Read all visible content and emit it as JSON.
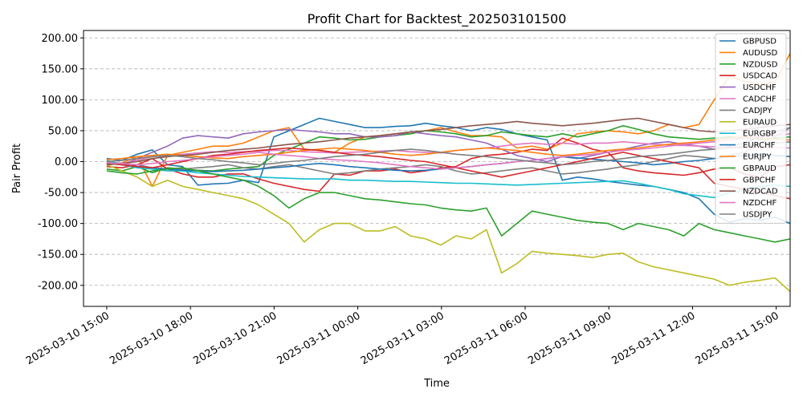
{
  "chart_data": {
    "type": "line",
    "title": "Profit Chart for Backtest_202503101500",
    "xlabel": "Time",
    "ylabel": "Pair Profit",
    "x_start": "2025-03-10 15:00",
    "x_end": "2025-03-11 15:30",
    "xlim": [
      "2025-03-10 14:10",
      "2025-03-11 15:30"
    ],
    "ylim": [
      -234,
      212
    ],
    "x_ticks": [
      "2025-03-10 15:00",
      "2025-03-10 18:00",
      "2025-03-10 21:00",
      "2025-03-11 00:00",
      "2025-03-11 03:00",
      "2025-03-11 06:00",
      "2025-03-11 09:00",
      "2025-03-11 12:00",
      "2025-03-11 15:00"
    ],
    "y_ticks": [
      "-200.00",
      "-150.00",
      "-100.00",
      "-50.00",
      "0.00",
      "50.00",
      "100.00",
      "150.00",
      "200.00"
    ],
    "y_tick_values": [
      -200,
      -150,
      -100,
      -50,
      0,
      50,
      100,
      150,
      200
    ],
    "grid": "horizontal dashed",
    "legend_position": "top-right",
    "series": [
      {
        "name": "GBPUSD",
        "color": "#1f77b4",
        "values": [
          5,
          2,
          12,
          19,
          -5,
          -8,
          -38,
          -36,
          -35,
          -30,
          -34,
          40,
          50,
          60,
          70,
          65,
          60,
          55,
          55,
          57,
          58,
          62,
          58,
          55,
          50,
          55,
          52,
          45,
          40,
          35,
          -30,
          -25,
          -28,
          -32,
          -35,
          -38,
          -40,
          -45,
          -50,
          -60,
          -85,
          -98,
          -92,
          -95,
          -90,
          -100
        ]
      },
      {
        "name": "AUDUSD",
        "color": "#ff7f0e",
        "values": [
          -5,
          -2,
          8,
          -40,
          10,
          15,
          20,
          25,
          25,
          30,
          40,
          50,
          55,
          20,
          18,
          15,
          30,
          40,
          42,
          45,
          45,
          50,
          55,
          48,
          42,
          42,
          40,
          22,
          25,
          20,
          30,
          45,
          48,
          50,
          48,
          45,
          50,
          60,
          55,
          60,
          100,
          138,
          130,
          125,
          128,
          175
        ]
      },
      {
        "name": "NZDUSD",
        "color": "#2ca02c",
        "values": [
          -12,
          -15,
          -8,
          -18,
          -10,
          -12,
          -14,
          -15,
          -12,
          -10,
          -8,
          10,
          20,
          30,
          40,
          38,
          35,
          36,
          40,
          42,
          45,
          50,
          48,
          45,
          40,
          42,
          48,
          45,
          42,
          40,
          45,
          40,
          45,
          50,
          58,
          52,
          45,
          40,
          38,
          36,
          38,
          40,
          38,
          36,
          38,
          40
        ]
      },
      {
        "name": "USDCAD",
        "color": "#d62728",
        "values": [
          -8,
          -10,
          -5,
          5,
          -12,
          -20,
          -25,
          -25,
          -20,
          -20,
          -28,
          -35,
          -40,
          -45,
          -48,
          -20,
          -22,
          -15,
          -15,
          -12,
          -18,
          -15,
          -10,
          -8,
          5,
          10,
          12,
          15,
          20,
          18,
          38,
          30,
          20,
          15,
          -10,
          -15,
          -18,
          -20,
          -22,
          -18,
          -12,
          -10,
          -20,
          -25,
          -8,
          -5
        ]
      },
      {
        "name": "USDCHF",
        "color": "#9467bd",
        "values": [
          -2,
          -5,
          5,
          15,
          25,
          38,
          42,
          40,
          38,
          45,
          48,
          50,
          52,
          50,
          48,
          45,
          45,
          40,
          40,
          42,
          48,
          45,
          42,
          40,
          35,
          30,
          20,
          10,
          5,
          0,
          8,
          5,
          10,
          15,
          20,
          25,
          30,
          32,
          28,
          25,
          20,
          25,
          30,
          40,
          48,
          55
        ]
      },
      {
        "name": "CADCHF",
        "color": "#e377c2",
        "values": [
          -5,
          -3,
          2,
          8,
          10,
          12,
          14,
          16,
          15,
          16,
          17,
          18,
          18,
          16,
          15,
          14,
          15,
          16,
          17,
          18,
          16,
          15,
          14,
          18,
          20,
          22,
          25,
          28,
          30,
          28,
          30,
          28,
          30,
          30,
          32,
          30,
          28,
          27,
          26,
          25,
          24,
          23,
          22,
          22,
          23,
          22
        ]
      },
      {
        "name": "CADJPY",
        "color": "#7f7f7f",
        "values": [
          0,
          -3,
          -5,
          -10,
          -12,
          -12,
          -10,
          -8,
          -5,
          -10,
          -12,
          -8,
          -5,
          -10,
          -15,
          -20,
          -18,
          -15,
          -12,
          -10,
          -8,
          -5,
          -8,
          -15,
          -20,
          -18,
          -15,
          -12,
          -10,
          -15,
          -20,
          -18,
          -15,
          -12,
          -8,
          -5,
          0,
          5,
          10,
          8,
          5,
          10,
          15,
          30,
          40,
          55
        ]
      },
      {
        "name": "EURAUD",
        "color": "#bcbd22",
        "values": [
          -5,
          -15,
          -25,
          -40,
          -30,
          -40,
          -45,
          -50,
          -55,
          -60,
          -70,
          -85,
          -100,
          -130,
          -110,
          -100,
          -100,
          -112,
          -112,
          -105,
          -120,
          -125,
          -135,
          -120,
          -125,
          -110,
          -180,
          -165,
          -145,
          -148,
          -150,
          -152,
          -155,
          -150,
          -148,
          -162,
          -170,
          -175,
          -180,
          -185,
          -190,
          -200,
          -195,
          -192,
          -188,
          -210
        ]
      },
      {
        "name": "EURGBP",
        "color": "#17becf",
        "values": [
          2,
          -5,
          -10,
          -12,
          -15,
          -15,
          -18,
          -20,
          -22,
          -24,
          -25,
          -26,
          -27,
          -28,
          -28,
          -28,
          -30,
          -30,
          -31,
          -32,
          -32,
          -33,
          -34,
          -35,
          -35,
          -36,
          -37,
          -38,
          -37,
          -36,
          -35,
          -34,
          -33,
          -32,
          -31,
          -35,
          -40,
          -45,
          -52,
          -55,
          -58,
          -50,
          -45,
          -40,
          -38,
          -40
        ]
      },
      {
        "name": "EURCHF",
        "color": "#1f77b4",
        "values": [
          -3,
          -5,
          -8,
          -10,
          -12,
          -14,
          -15,
          -16,
          -15,
          -14,
          -12,
          -10,
          -8,
          -5,
          -3,
          -5,
          -8,
          -10,
          -12,
          -14,
          -15,
          -14,
          -12,
          -10,
          -8,
          -5,
          -3,
          0,
          2,
          5,
          8,
          6,
          4,
          2,
          0,
          -2,
          -5,
          -3,
          0,
          2,
          5,
          8,
          10,
          12,
          10,
          8
        ]
      },
      {
        "name": "EURJPY",
        "color": "#ff7f0e",
        "values": [
          3,
          5,
          8,
          10,
          12,
          10,
          8,
          6,
          5,
          8,
          10,
          12,
          15,
          18,
          20,
          22,
          20,
          18,
          15,
          12,
          10,
          12,
          15,
          18,
          20,
          22,
          20,
          18,
          15,
          12,
          10,
          12,
          15,
          18,
          20,
          22,
          25,
          28,
          30,
          32,
          35,
          38,
          40,
          38,
          36,
          35
        ]
      },
      {
        "name": "GBPAUD",
        "color": "#2ca02c",
        "values": [
          -15,
          -18,
          -20,
          -15,
          -12,
          -10,
          -15,
          -20,
          -25,
          -30,
          -40,
          -55,
          -75,
          -60,
          -50,
          -50,
          -55,
          -60,
          -62,
          -65,
          -68,
          -70,
          -75,
          -78,
          -80,
          -75,
          -120,
          -100,
          -80,
          -85,
          -90,
          -95,
          -98,
          -100,
          -110,
          -100,
          -105,
          -110,
          -120,
          -100,
          -110,
          -115,
          -120,
          -125,
          -130,
          -125
        ]
      },
      {
        "name": "GBPCHF",
        "color": "#d62728",
        "values": [
          -3,
          -5,
          -8,
          -10,
          -5,
          0,
          5,
          10,
          12,
          15,
          18,
          20,
          22,
          20,
          18,
          15,
          12,
          10,
          8,
          5,
          2,
          0,
          -5,
          -10,
          -15,
          -20,
          -25,
          -20,
          -15,
          -10,
          -5,
          0,
          5,
          10,
          15,
          10,
          5,
          0,
          -5,
          -10,
          -35,
          -40,
          -45,
          -50,
          -55,
          -60
        ]
      },
      {
        "name": "NZDCAD",
        "color": "#8c564b",
        "values": [
          -5,
          -3,
          0,
          5,
          8,
          10,
          12,
          15,
          18,
          20,
          22,
          25,
          28,
          30,
          32,
          35,
          38,
          40,
          42,
          45,
          48,
          50,
          52,
          55,
          58,
          60,
          62,
          65,
          62,
          60,
          58,
          60,
          62,
          65,
          68,
          70,
          65,
          60,
          55,
          50,
          48,
          50,
          52,
          55,
          58,
          60
        ]
      },
      {
        "name": "NZDCHF",
        "color": "#e377c2",
        "values": [
          -2,
          -3,
          -5,
          -3,
          0,
          2,
          5,
          8,
          10,
          12,
          15,
          12,
          10,
          8,
          5,
          3,
          2,
          0,
          -2,
          -5,
          -8,
          -10,
          -12,
          -10,
          -8,
          -5,
          -3,
          0,
          2,
          5,
          8,
          10,
          12,
          15,
          18,
          20,
          22,
          25,
          28,
          30,
          32,
          35,
          38,
          40,
          42,
          45
        ]
      },
      {
        "name": "USDJPY",
        "color": "#7f7f7f",
        "values": [
          0,
          2,
          5,
          8,
          10,
          8,
          5,
          3,
          0,
          -2,
          -5,
          -3,
          0,
          2,
          5,
          8,
          10,
          12,
          15,
          18,
          20,
          18,
          15,
          12,
          10,
          8,
          5,
          3,
          0,
          -2,
          -5,
          -3,
          0,
          2,
          5,
          8,
          10,
          12,
          15,
          18,
          20,
          22,
          25,
          28,
          30,
          32
        ]
      }
    ]
  }
}
